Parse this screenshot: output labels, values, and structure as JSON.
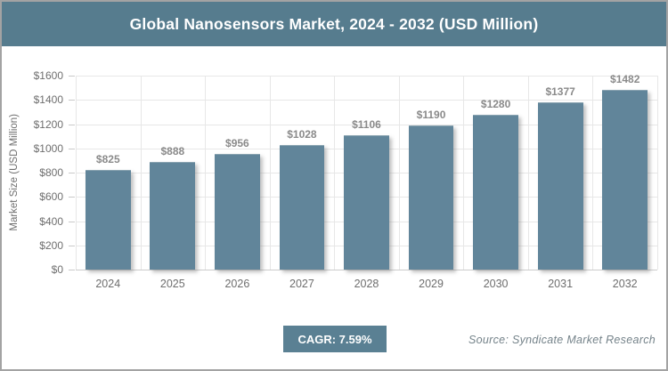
{
  "chart_data": {
    "type": "bar",
    "title": "Global Nanosensors Market, 2024 - 2032 (USD Million)",
    "categories": [
      "2024",
      "2025",
      "2026",
      "2027",
      "2028",
      "2029",
      "2030",
      "2031",
      "2032"
    ],
    "values": [
      825,
      888,
      956,
      1028,
      1106,
      1190,
      1280,
      1377,
      1482
    ],
    "value_labels": [
      "$825",
      "$888",
      "$956",
      "$1028",
      "$1106",
      "$1190",
      "$1280",
      "$1377",
      "$1482"
    ],
    "xlabel": "",
    "ylabel": "Market Size (USD Million)",
    "ylim": [
      0,
      1600
    ],
    "ytick_step": 200,
    "ytick_labels": [
      "$0",
      "$200",
      "$400",
      "$600",
      "$800",
      "$1000",
      "$1200",
      "$1400",
      "$1600"
    ],
    "grid": true,
    "legend": "none",
    "bar_color": "#61859a"
  },
  "footer": {
    "cagr_label": "CAGR: 7.59%",
    "source": "Source: Syndicate Market Research"
  },
  "colors": {
    "title_bar_bg": "#567c8e",
    "bar_fill": "#61859a",
    "badge_bg": "#5a8093",
    "grid_line": "#e7e7e7",
    "value_label": "#8a8a8a",
    "axis_text": "#6e6e6e",
    "border": "#a3a3a3",
    "source_text": "#75838a"
  }
}
